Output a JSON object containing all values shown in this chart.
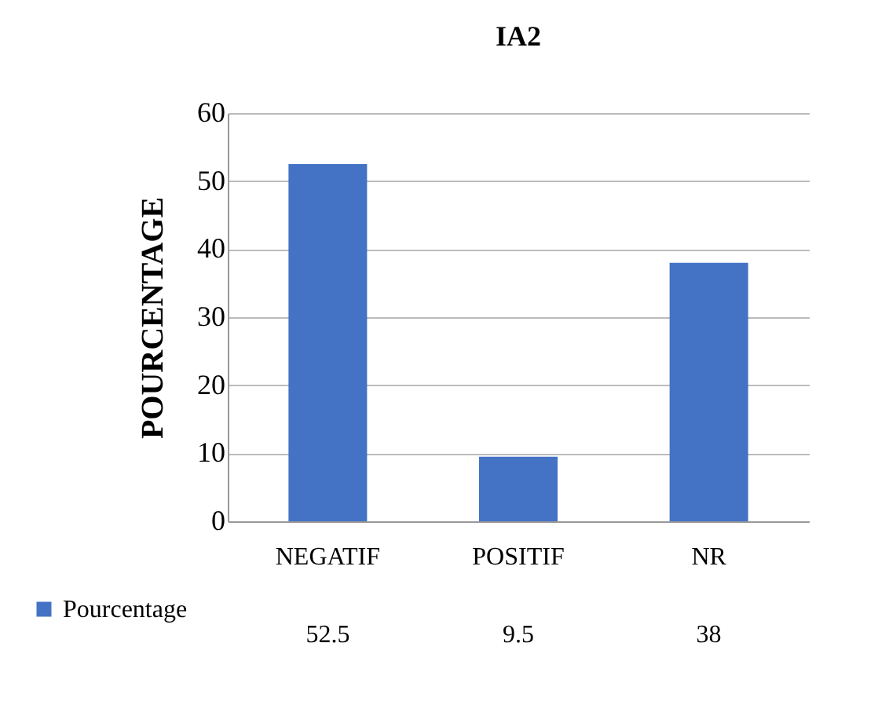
{
  "chart_data": {
    "type": "bar",
    "title": "IA2",
    "ylabel": "POURCENTAGE",
    "categories": [
      "NEGATIF",
      "POSITIF",
      "NR"
    ],
    "series": [
      {
        "name": "Pourcentage",
        "color": "#4472c4",
        "values": [
          52.5,
          9.5,
          38
        ]
      }
    ],
    "ylim": [
      0,
      60
    ],
    "yticks": [
      0,
      10,
      20,
      30,
      40,
      50,
      60
    ],
    "grid": "y",
    "legend": "bottom",
    "data_labels": true
  }
}
